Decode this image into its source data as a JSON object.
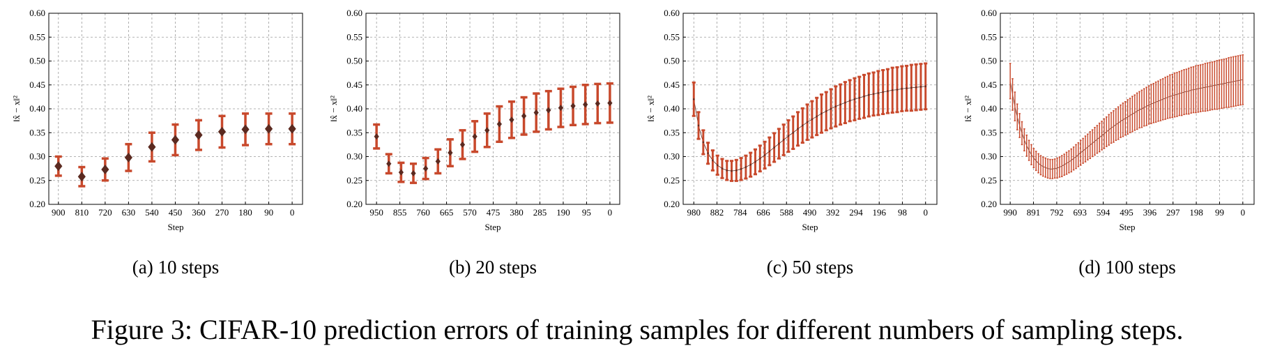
{
  "figure_caption": "Figure 3: CIFAR-10 prediction errors of training samples for different numbers of sampling steps.",
  "chart_data": [
    {
      "type": "errorbar",
      "caption": "(a) 10 steps",
      "xlabel": "Step",
      "ylabel": "‖x̂ − x‖²",
      "x": [
        900,
        810,
        720,
        630,
        540,
        450,
        360,
        270,
        180,
        90,
        0
      ],
      "values": [
        0.28,
        0.258,
        0.273,
        0.298,
        0.32,
        0.335,
        0.345,
        0.352,
        0.357,
        0.358,
        0.358
      ],
      "errors": [
        0.02,
        0.02,
        0.023,
        0.028,
        0.03,
        0.032,
        0.031,
        0.033,
        0.033,
        0.032,
        0.032
      ],
      "color": "#c8492c",
      "marker_color": "#5b2a20",
      "marker": "diamond",
      "connect": false,
      "xlim": [
        937,
        -40
      ],
      "ylim": [
        0.2,
        0.6
      ],
      "xticks": [
        900,
        810,
        720,
        630,
        540,
        450,
        360,
        270,
        180,
        90,
        0
      ],
      "yticks": [
        {
          "value": 0.2,
          "label": "0.20"
        },
        0.25,
        {
          "value": 0.3,
          "label": "0.30"
        },
        0.35,
        {
          "value": 0.4,
          "label": "0.40"
        },
        0.45,
        {
          "value": 0.5,
          "label": "0.50"
        },
        0.55,
        {
          "value": 0.6,
          "label": "0.60"
        }
      ],
      "grid": true
    },
    {
      "type": "errorbar",
      "caption": "(b) 20 steps",
      "xlabel": "Step",
      "ylabel": "‖x̂ − x‖²",
      "x": [
        950,
        900,
        850,
        800,
        750,
        700,
        650,
        600,
        550,
        500,
        450,
        400,
        350,
        300,
        250,
        200,
        150,
        100,
        50,
        0
      ],
      "values": [
        0.342,
        0.285,
        0.267,
        0.265,
        0.275,
        0.29,
        0.308,
        0.325,
        0.342,
        0.355,
        0.368,
        0.377,
        0.385,
        0.392,
        0.397,
        0.402,
        0.406,
        0.409,
        0.411,
        0.412
      ],
      "errors": [
        0.025,
        0.02,
        0.02,
        0.02,
        0.022,
        0.025,
        0.028,
        0.03,
        0.032,
        0.035,
        0.037,
        0.038,
        0.039,
        0.04,
        0.04,
        0.04,
        0.04,
        0.041,
        0.041,
        0.041
      ],
      "color": "#c8492c",
      "marker_color": "#5b2a20",
      "marker": "diamond",
      "connect": false,
      "xlim": [
        993,
        -40
      ],
      "ylim": [
        0.2,
        0.6
      ],
      "xticks": [
        950,
        855,
        760,
        665,
        570,
        475,
        380,
        285,
        190,
        95,
        0
      ],
      "yticks": [
        {
          "value": 0.2,
          "label": "0.20"
        },
        0.25,
        {
          "value": 0.3,
          "label": "0.30"
        },
        0.35,
        {
          "value": 0.4,
          "label": "0.40"
        },
        0.45,
        {
          "value": 0.5,
          "label": "0.50"
        },
        0.55,
        {
          "value": 0.6,
          "label": "0.60"
        }
      ],
      "grid": true
    },
    {
      "type": "errorbar",
      "caption": "(c) 50 steps",
      "xlabel": "Step",
      "ylabel": "‖x̂ − x‖²",
      "x": [
        980,
        960,
        940,
        920,
        900,
        880,
        860,
        840,
        820,
        800,
        780,
        760,
        740,
        720,
        700,
        680,
        660,
        640,
        620,
        600,
        580,
        560,
        540,
        520,
        500,
        480,
        460,
        440,
        420,
        400,
        380,
        360,
        340,
        320,
        300,
        280,
        260,
        240,
        220,
        200,
        180,
        160,
        140,
        120,
        100,
        80,
        60,
        40,
        20,
        0
      ],
      "values": [
        0.42,
        0.365,
        0.33,
        0.307,
        0.292,
        0.282,
        0.275,
        0.271,
        0.27,
        0.271,
        0.274,
        0.278,
        0.283,
        0.289,
        0.296,
        0.303,
        0.311,
        0.319,
        0.327,
        0.335,
        0.343,
        0.35,
        0.358,
        0.365,
        0.372,
        0.378,
        0.384,
        0.39,
        0.395,
        0.4,
        0.405,
        0.409,
        0.413,
        0.417,
        0.42,
        0.423,
        0.426,
        0.429,
        0.431,
        0.433,
        0.435,
        0.437,
        0.439,
        0.44,
        0.442,
        0.443,
        0.444,
        0.445,
        0.446,
        0.447
      ],
      "errors": [
        0.035,
        0.028,
        0.025,
        0.022,
        0.021,
        0.02,
        0.02,
        0.02,
        0.021,
        0.022,
        0.023,
        0.024,
        0.025,
        0.026,
        0.027,
        0.028,
        0.029,
        0.03,
        0.031,
        0.032,
        0.033,
        0.034,
        0.035,
        0.036,
        0.037,
        0.038,
        0.039,
        0.04,
        0.04,
        0.041,
        0.042,
        0.042,
        0.043,
        0.043,
        0.044,
        0.044,
        0.045,
        0.045,
        0.045,
        0.046,
        0.046,
        0.046,
        0.047,
        0.047,
        0.047,
        0.047,
        0.048,
        0.048,
        0.048,
        0.048
      ],
      "color": "#c8492c",
      "marker_color": "#5b2a20",
      "marker": "diamond",
      "connect": true,
      "xlim": [
        1025,
        -48
      ],
      "ylim": [
        0.2,
        0.6
      ],
      "xticks": [
        980,
        882,
        784,
        686,
        588,
        490,
        392,
        294,
        196,
        98,
        0
      ],
      "yticks": [
        {
          "value": 0.2,
          "label": "0.20"
        },
        0.25,
        {
          "value": 0.3,
          "label": "0.30"
        },
        0.35,
        {
          "value": 0.4,
          "label": "0.40"
        },
        0.45,
        {
          "value": 0.5,
          "label": "0.50"
        },
        0.55,
        {
          "value": 0.6,
          "label": "0.60"
        }
      ],
      "grid": true
    },
    {
      "type": "errorbar",
      "caption": "(d) 100 steps",
      "xlabel": "Step",
      "ylabel": "‖x̂ − x‖²",
      "x": [
        990,
        980,
        970,
        960,
        950,
        940,
        930,
        920,
        910,
        900,
        890,
        880,
        870,
        860,
        850,
        840,
        830,
        820,
        810,
        800,
        790,
        780,
        770,
        760,
        750,
        740,
        730,
        720,
        710,
        700,
        690,
        680,
        670,
        660,
        650,
        640,
        630,
        620,
        610,
        600,
        590,
        580,
        570,
        560,
        550,
        540,
        530,
        520,
        510,
        500,
        490,
        480,
        470,
        460,
        450,
        440,
        430,
        420,
        410,
        400,
        390,
        380,
        370,
        360,
        350,
        340,
        330,
        320,
        310,
        300,
        290,
        280,
        270,
        260,
        250,
        240,
        230,
        220,
        210,
        200,
        190,
        180,
        170,
        160,
        150,
        140,
        130,
        120,
        110,
        100,
        90,
        80,
        70,
        60,
        50,
        40,
        30,
        20,
        10,
        0
      ],
      "values": [
        0.458,
        0.43,
        0.405,
        0.383,
        0.365,
        0.349,
        0.335,
        0.323,
        0.313,
        0.304,
        0.297,
        0.291,
        0.286,
        0.282,
        0.279,
        0.277,
        0.275,
        0.274,
        0.274,
        0.275,
        0.276,
        0.278,
        0.28,
        0.283,
        0.286,
        0.289,
        0.292,
        0.296,
        0.3,
        0.304,
        0.308,
        0.312,
        0.316,
        0.32,
        0.324,
        0.328,
        0.332,
        0.336,
        0.34,
        0.344,
        0.348,
        0.352,
        0.356,
        0.36,
        0.363,
        0.367,
        0.37,
        0.374,
        0.377,
        0.38,
        0.383,
        0.386,
        0.389,
        0.392,
        0.395,
        0.398,
        0.4,
        0.403,
        0.405,
        0.408,
        0.41,
        0.412,
        0.414,
        0.416,
        0.418,
        0.42,
        0.422,
        0.424,
        0.426,
        0.427,
        0.429,
        0.43,
        0.432,
        0.433,
        0.435,
        0.436,
        0.437,
        0.439,
        0.44,
        0.441,
        0.442,
        0.443,
        0.444,
        0.445,
        0.446,
        0.447,
        0.448,
        0.449,
        0.45,
        0.451,
        0.452,
        0.453,
        0.454,
        0.455,
        0.456,
        0.457,
        0.458,
        0.459,
        0.46,
        0.461
      ],
      "errors": [
        0.037,
        0.033,
        0.03,
        0.027,
        0.025,
        0.024,
        0.023,
        0.022,
        0.021,
        0.021,
        0.02,
        0.02,
        0.02,
        0.02,
        0.02,
        0.02,
        0.02,
        0.02,
        0.02,
        0.02,
        0.021,
        0.021,
        0.022,
        0.022,
        0.023,
        0.023,
        0.024,
        0.024,
        0.025,
        0.025,
        0.026,
        0.026,
        0.027,
        0.027,
        0.028,
        0.028,
        0.029,
        0.029,
        0.03,
        0.03,
        0.031,
        0.031,
        0.032,
        0.032,
        0.033,
        0.033,
        0.034,
        0.034,
        0.035,
        0.035,
        0.036,
        0.036,
        0.037,
        0.037,
        0.038,
        0.038,
        0.039,
        0.039,
        0.04,
        0.04,
        0.041,
        0.041,
        0.042,
        0.042,
        0.043,
        0.043,
        0.044,
        0.044,
        0.045,
        0.045,
        0.046,
        0.046,
        0.046,
        0.047,
        0.047,
        0.047,
        0.048,
        0.048,
        0.048,
        0.049,
        0.049,
        0.049,
        0.049,
        0.05,
        0.05,
        0.05,
        0.05,
        0.05,
        0.051,
        0.051,
        0.051,
        0.051,
        0.051,
        0.052,
        0.052,
        0.052,
        0.052,
        0.052,
        0.052,
        0.052
      ],
      "color": "#c8492c",
      "marker_color": "#5b2a20",
      "connect": true,
      "xlim": [
        1032,
        -48
      ],
      "ylim": [
        0.2,
        0.6
      ],
      "xticks": [
        990,
        891,
        792,
        693,
        594,
        495,
        396,
        297,
        198,
        99,
        0
      ],
      "yticks": [
        {
          "value": 0.2,
          "label": "0.20"
        },
        0.25,
        {
          "value": 0.3,
          "label": "0.30"
        },
        0.35,
        {
          "value": 0.4,
          "label": "0.40"
        },
        0.45,
        {
          "value": 0.5,
          "label": "0.50"
        },
        0.55,
        {
          "value": 0.6,
          "label": "0.60"
        }
      ],
      "grid": true
    }
  ]
}
